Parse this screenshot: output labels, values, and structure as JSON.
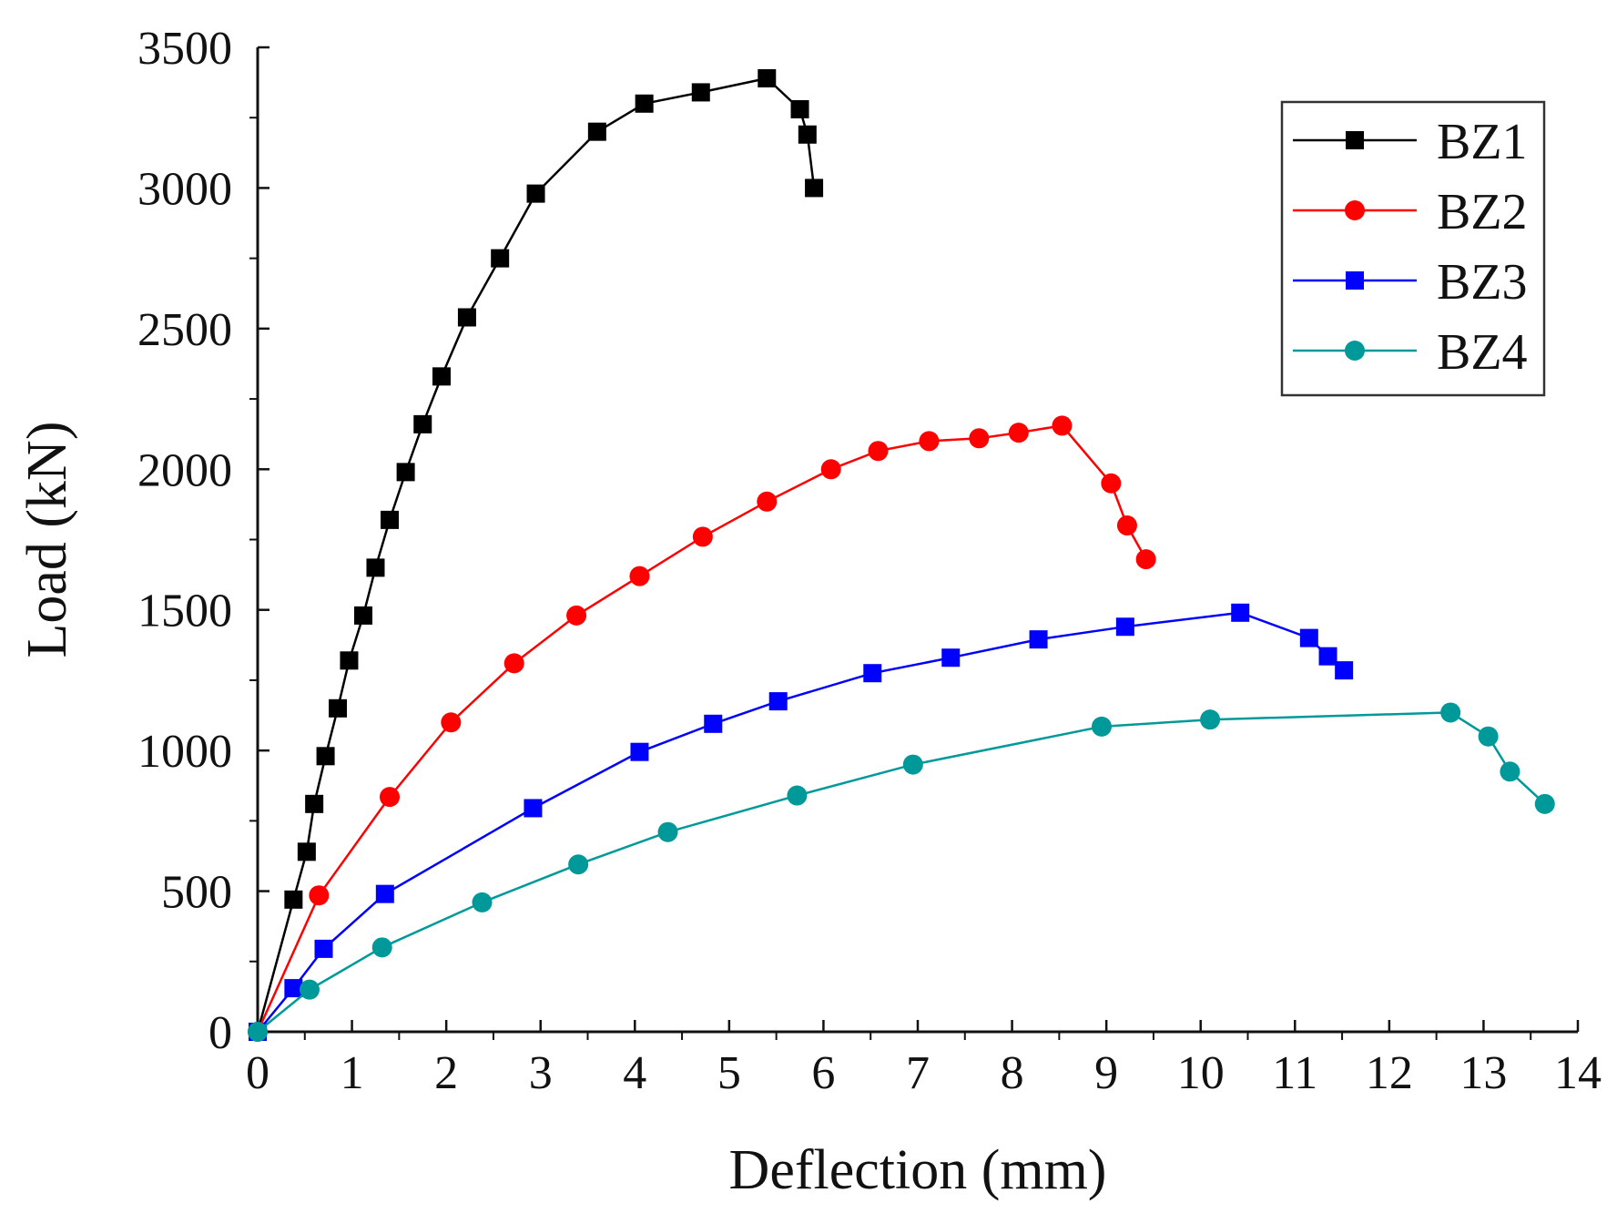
{
  "chart_data": {
    "type": "line",
    "title": "",
    "xlabel": "Deflection (mm)",
    "ylabel": "Load (kN)",
    "xlim": [
      0,
      14
    ],
    "ylim": [
      0,
      3500
    ],
    "xticks": [
      0,
      1,
      2,
      3,
      4,
      5,
      6,
      7,
      8,
      9,
      10,
      11,
      12,
      13,
      14
    ],
    "yticks": [
      0,
      500,
      1000,
      1500,
      2000,
      2500,
      3000,
      3500
    ],
    "grid": false,
    "legend_position": "top-right",
    "series": [
      {
        "name": "BZ1",
        "color": "#000000",
        "marker": "square",
        "x": [
          0,
          0.38,
          0.52,
          0.6,
          0.72,
          0.85,
          0.97,
          1.12,
          1.25,
          1.4,
          1.57,
          1.75,
          1.95,
          2.22,
          2.57,
          2.95,
          3.6,
          4.1,
          4.7,
          5.4,
          5.75,
          5.83,
          5.9
        ],
        "y": [
          0,
          470,
          640,
          810,
          980,
          1150,
          1320,
          1480,
          1650,
          1820,
          1990,
          2160,
          2330,
          2540,
          2750,
          2980,
          3200,
          3300,
          3340,
          3390,
          3280,
          3190,
          3000
        ]
      },
      {
        "name": "BZ2",
        "color": "#ff0000",
        "marker": "circle",
        "x": [
          0,
          0.65,
          1.4,
          2.05,
          2.72,
          3.38,
          4.05,
          4.72,
          5.4,
          6.08,
          6.58,
          7.12,
          7.65,
          8.07,
          8.53,
          9.05,
          9.22,
          9.42
        ],
        "y": [
          0,
          485,
          835,
          1100,
          1310,
          1480,
          1620,
          1760,
          1885,
          2000,
          2065,
          2100,
          2110,
          2130,
          2155,
          1950,
          1800,
          1680
        ]
      },
      {
        "name": "BZ3",
        "color": "#0000ff",
        "marker": "square",
        "x": [
          0,
          0.38,
          0.7,
          1.35,
          2.92,
          4.05,
          4.83,
          5.52,
          6.52,
          7.35,
          8.28,
          9.2,
          10.42,
          11.15,
          11.35,
          11.52
        ],
        "y": [
          0,
          155,
          295,
          490,
          795,
          995,
          1095,
          1175,
          1275,
          1330,
          1395,
          1440,
          1490,
          1400,
          1335,
          1285
        ]
      },
      {
        "name": "BZ4",
        "color": "#009999",
        "marker": "circle",
        "x": [
          0,
          0.55,
          1.32,
          2.38,
          3.4,
          4.35,
          5.72,
          6.95,
          8.95,
          10.1,
          12.65,
          13.05,
          13.28,
          13.65
        ],
        "y": [
          0,
          150,
          300,
          460,
          595,
          710,
          840,
          950,
          1085,
          1110,
          1135,
          1050,
          925,
          810
        ]
      }
    ]
  }
}
